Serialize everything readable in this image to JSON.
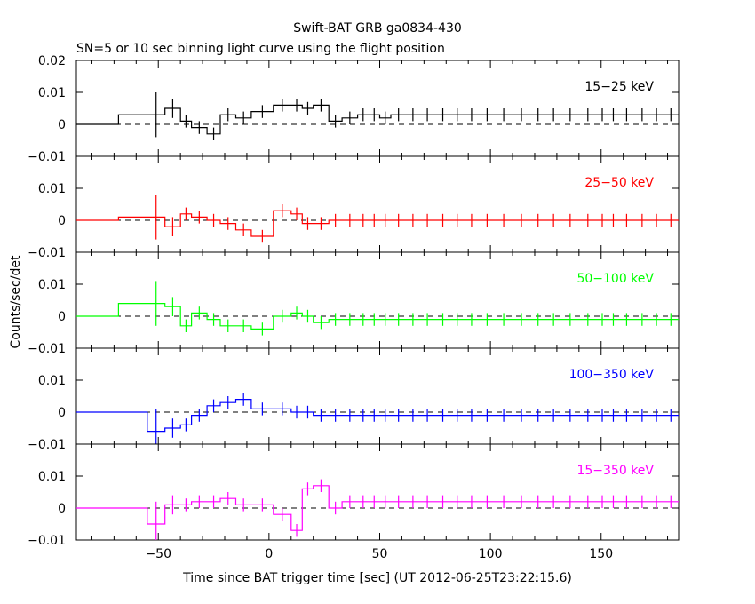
{
  "chart_data": {
    "type": "line",
    "title": "Swift-BAT GRB ga0834-430",
    "subtitle": "SN=5 or 10 sec binning light curve using the flight position",
    "xlabel": "Time since BAT trigger time [sec] (UT 2012-06-25T23:22:15.6)",
    "ylabel": "Counts/sec/det",
    "xlim": [
      -87,
      185
    ],
    "x_ticks": [
      -50,
      0,
      50,
      100,
      150
    ],
    "x_tick_labels": [
      "−50",
      "0",
      "50",
      "100",
      "150"
    ],
    "grid": false,
    "legend": "none",
    "bin_edges": [
      -87,
      -68,
      -55,
      -47,
      -40,
      -35,
      -28,
      -22,
      -15,
      -8,
      2,
      10,
      15,
      20,
      27,
      33,
      40,
      45,
      50,
      55,
      62,
      68,
      75,
      82,
      88,
      95,
      102,
      110,
      118,
      125,
      132,
      140,
      148,
      153,
      158,
      165,
      172,
      178,
      185
    ],
    "panels": [
      {
        "name": "15−25 keV",
        "color": "#000000",
        "ylim": [
          -0.01,
          0.02
        ],
        "y_ticks": [
          -0.01,
          0,
          0.01,
          0.02
        ],
        "y_tick_labels": [
          "−0.01",
          "0",
          "0.01",
          "0.02"
        ],
        "values": [
          0.0,
          0.003,
          0.003,
          0.005,
          0.001,
          -0.001,
          -0.003,
          0.003,
          0.002,
          0.004,
          0.006,
          0.006,
          0.005,
          0.006,
          0.001,
          0.002,
          0.003,
          0.003,
          0.002,
          0.003,
          0.003,
          0.003,
          0.003,
          0.003,
          0.003,
          0.003,
          0.003,
          0.003,
          0.003,
          0.003,
          0.003,
          0.003,
          0.003,
          0.003,
          0.003,
          0.003,
          0.003,
          0.003
        ],
        "errors": [
          0,
          0,
          0.007,
          0.003,
          0.002,
          0.002,
          0.002,
          0.002,
          0.002,
          0.002,
          0.002,
          0.002,
          0.002,
          0.002,
          0.002,
          0.002,
          0.002,
          0.002,
          0.002,
          0.002,
          0.002,
          0.002,
          0.002,
          0.002,
          0.002,
          0.002,
          0.002,
          0.002,
          0.002,
          0.002,
          0.002,
          0.002,
          0.002,
          0.002,
          0.002,
          0.002,
          0.002,
          0.002
        ]
      },
      {
        "name": "25−50 keV",
        "color": "#ff0000",
        "ylim": [
          -0.01,
          0.02
        ],
        "y_ticks": [
          -0.01,
          0,
          0.01,
          0.02
        ],
        "y_tick_labels": [
          "−0.01",
          "0",
          "0.01",
          ""
        ],
        "values": [
          0.0,
          0.001,
          0.001,
          -0.002,
          0.002,
          0.001,
          0.0,
          -0.001,
          -0.003,
          -0.005,
          0.003,
          0.002,
          -0.001,
          -0.001,
          0.0,
          0.0,
          0.0,
          0.0,
          0.0,
          0.0,
          0.0,
          0.0,
          0.0,
          0.0,
          0.0,
          0.0,
          0.0,
          0.0,
          0.0,
          0.0,
          0.0,
          0.0,
          0.0,
          0.0,
          0.0,
          0.0,
          0.0,
          0.0
        ],
        "errors": [
          0,
          0,
          0.007,
          0.003,
          0.002,
          0.002,
          0.002,
          0.002,
          0.002,
          0.002,
          0.002,
          0.002,
          0.002,
          0.002,
          0.002,
          0.002,
          0.002,
          0.002,
          0.002,
          0.002,
          0.002,
          0.002,
          0.002,
          0.002,
          0.002,
          0.002,
          0.002,
          0.002,
          0.002,
          0.002,
          0.002,
          0.002,
          0.002,
          0.002,
          0.002,
          0.002,
          0.002,
          0.002
        ]
      },
      {
        "name": "50−100 keV",
        "color": "#00ff00",
        "ylim": [
          -0.01,
          0.02
        ],
        "y_ticks": [
          -0.01,
          0,
          0.01,
          0.02
        ],
        "y_tick_labels": [
          "−0.01",
          "0",
          "0.01",
          ""
        ],
        "values": [
          0.0,
          0.004,
          0.004,
          0.003,
          -0.003,
          0.001,
          -0.001,
          -0.003,
          -0.003,
          -0.004,
          0.0,
          0.001,
          0.0,
          -0.002,
          -0.001,
          -0.001,
          -0.001,
          -0.001,
          -0.001,
          -0.001,
          -0.001,
          -0.001,
          -0.001,
          -0.001,
          -0.001,
          -0.001,
          -0.001,
          -0.001,
          -0.001,
          -0.001,
          -0.001,
          -0.001,
          -0.001,
          -0.001,
          -0.001,
          -0.001,
          -0.001,
          -0.001
        ],
        "errors": [
          0,
          0,
          0.007,
          0.003,
          0.002,
          0.002,
          0.002,
          0.002,
          0.002,
          0.002,
          0.002,
          0.002,
          0.002,
          0.002,
          0.002,
          0.002,
          0.002,
          0.002,
          0.002,
          0.002,
          0.002,
          0.002,
          0.002,
          0.002,
          0.002,
          0.002,
          0.002,
          0.002,
          0.002,
          0.002,
          0.002,
          0.002,
          0.002,
          0.002,
          0.002,
          0.002,
          0.002,
          0.002
        ]
      },
      {
        "name": "100−350 keV",
        "color": "#0000ff",
        "ylim": [
          -0.01,
          0.02
        ],
        "y_ticks": [
          -0.01,
          0,
          0.01,
          0.02
        ],
        "y_tick_labels": [
          "−0.01",
          "0",
          "0.01",
          ""
        ],
        "values": [
          0.0,
          0.0,
          -0.006,
          -0.005,
          -0.004,
          -0.001,
          0.002,
          0.003,
          0.004,
          0.001,
          0.001,
          0.0,
          0.0,
          -0.001,
          -0.001,
          -0.001,
          -0.001,
          -0.001,
          -0.001,
          -0.001,
          -0.001,
          -0.001,
          -0.001,
          -0.001,
          -0.001,
          -0.001,
          -0.001,
          -0.001,
          -0.001,
          -0.001,
          -0.001,
          -0.001,
          -0.001,
          -0.001,
          -0.001,
          -0.001,
          -0.001,
          -0.001
        ],
        "errors": [
          0,
          0,
          0.007,
          0.003,
          0.002,
          0.002,
          0.002,
          0.002,
          0.002,
          0.002,
          0.002,
          0.002,
          0.002,
          0.002,
          0.002,
          0.002,
          0.002,
          0.002,
          0.002,
          0.002,
          0.002,
          0.002,
          0.002,
          0.002,
          0.002,
          0.002,
          0.002,
          0.002,
          0.002,
          0.002,
          0.002,
          0.002,
          0.002,
          0.002,
          0.002,
          0.002,
          0.002,
          0.002
        ]
      },
      {
        "name": "15−350 keV",
        "color": "#ff00ff",
        "ylim": [
          -0.01,
          0.02
        ],
        "y_ticks": [
          -0.01,
          0,
          0.01,
          0.02
        ],
        "y_tick_labels": [
          "−0.01",
          "0",
          "0.01",
          ""
        ],
        "values": [
          0.0,
          0.0,
          -0.005,
          0.001,
          0.001,
          0.002,
          0.002,
          0.003,
          0.001,
          0.001,
          -0.002,
          -0.007,
          0.006,
          0.007,
          0.0,
          0.002,
          0.002,
          0.002,
          0.002,
          0.002,
          0.002,
          0.002,
          0.002,
          0.002,
          0.002,
          0.002,
          0.002,
          0.002,
          0.002,
          0.002,
          0.002,
          0.002,
          0.002,
          0.002,
          0.002,
          0.002,
          0.002,
          0.002
        ],
        "errors": [
          0,
          0,
          0.007,
          0.003,
          0.002,
          0.002,
          0.002,
          0.002,
          0.002,
          0.002,
          0.002,
          0.002,
          0.002,
          0.002,
          0.002,
          0.002,
          0.002,
          0.002,
          0.002,
          0.002,
          0.002,
          0.002,
          0.002,
          0.002,
          0.002,
          0.002,
          0.002,
          0.002,
          0.002,
          0.002,
          0.002,
          0.002,
          0.002,
          0.002,
          0.002,
          0.002,
          0.002,
          0.002
        ]
      }
    ]
  }
}
